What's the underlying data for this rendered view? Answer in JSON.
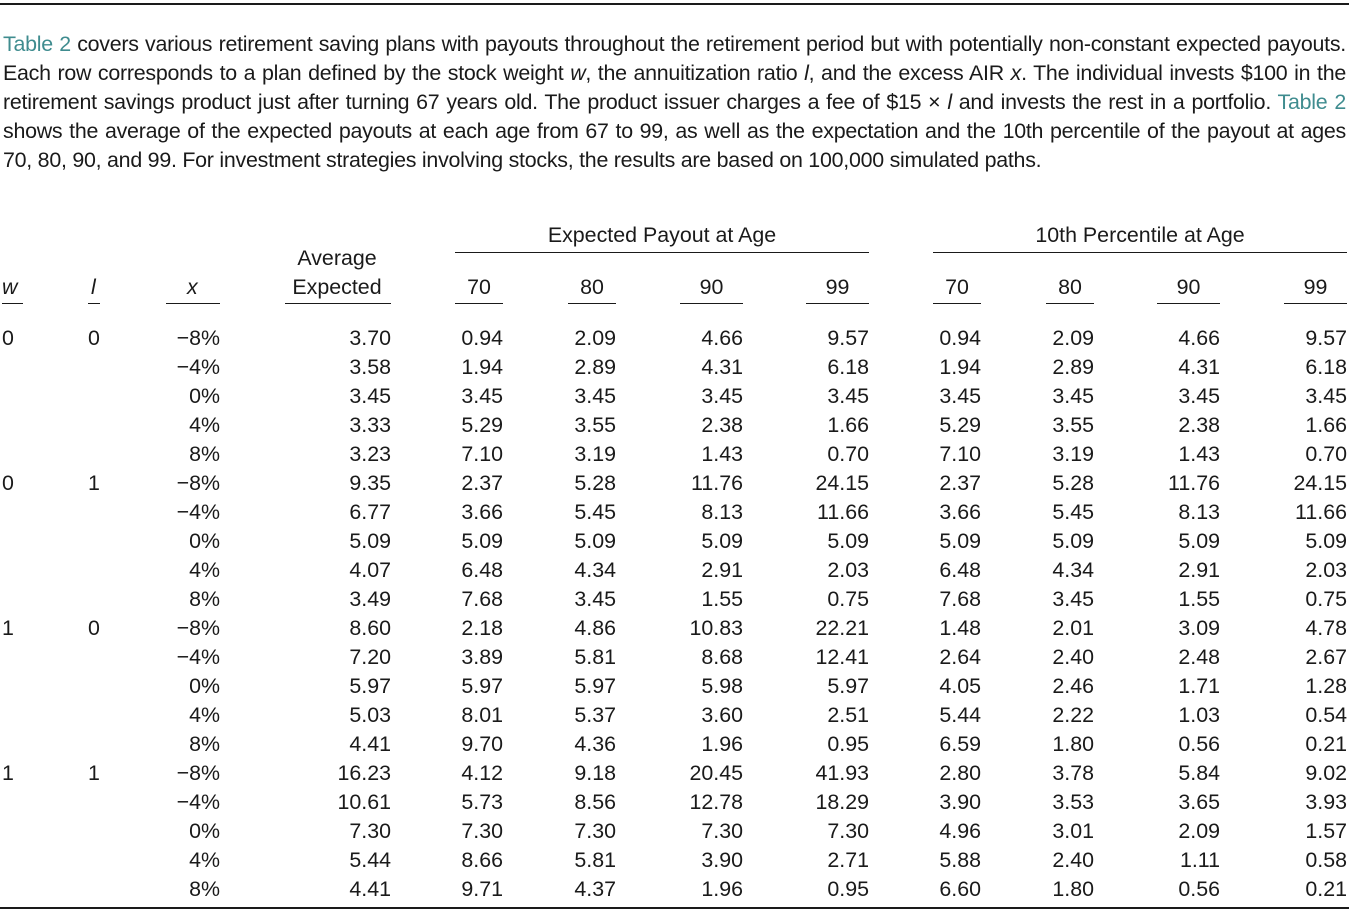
{
  "caption": {
    "ref1": "Table 2",
    "part1": " covers various retirement saving plans with payouts throughout the retirement period but with potentially non-constant expected payouts. Each row corresponds to a plan defined by the stock weight ",
    "var_w": "w",
    "part2": ", the annuitization ratio ",
    "var_l": "l",
    "part3": ", and the excess AIR ",
    "var_x": "x",
    "part4": ". The individual invests $100 in the retirement savings product just after turning 67 years old. The product issuer charges a fee of $15 × ",
    "var_l2": "l",
    "part5": " and invests the rest in a portfolio. ",
    "ref2": "Table 2",
    "part6": " shows the average of the expected payouts at each age from 67 to 99, as well as the expectation and the 10th percentile of the payout at ages 70, 80, 90, and 99. For investment strategies involving stocks, the results are based on 100,000 simulated paths."
  },
  "table": {
    "group_expected": "Expected Payout at Age",
    "group_percentile": "10th Percentile at Age",
    "col_w": "w",
    "col_l": "l",
    "col_x": "x",
    "col_avg_line1": "Average",
    "col_avg_line2": "Expected",
    "ages": [
      "70",
      "80",
      "90",
      "99"
    ],
    "rows": [
      [
        "0",
        "0",
        "−8%",
        "3.70",
        "0.94",
        "2.09",
        "4.66",
        "9.57",
        "0.94",
        "2.09",
        "4.66",
        "9.57"
      ],
      [
        "",
        "",
        "−4%",
        "3.58",
        "1.94",
        "2.89",
        "4.31",
        "6.18",
        "1.94",
        "2.89",
        "4.31",
        "6.18"
      ],
      [
        "",
        "",
        "0%",
        "3.45",
        "3.45",
        "3.45",
        "3.45",
        "3.45",
        "3.45",
        "3.45",
        "3.45",
        "3.45"
      ],
      [
        "",
        "",
        "4%",
        "3.33",
        "5.29",
        "3.55",
        "2.38",
        "1.66",
        "5.29",
        "3.55",
        "2.38",
        "1.66"
      ],
      [
        "",
        "",
        "8%",
        "3.23",
        "7.10",
        "3.19",
        "1.43",
        "0.70",
        "7.10",
        "3.19",
        "1.43",
        "0.70"
      ],
      [
        "0",
        "1",
        "−8%",
        "9.35",
        "2.37",
        "5.28",
        "11.76",
        "24.15",
        "2.37",
        "5.28",
        "11.76",
        "24.15"
      ],
      [
        "",
        "",
        "−4%",
        "6.77",
        "3.66",
        "5.45",
        "8.13",
        "11.66",
        "3.66",
        "5.45",
        "8.13",
        "11.66"
      ],
      [
        "",
        "",
        "0%",
        "5.09",
        "5.09",
        "5.09",
        "5.09",
        "5.09",
        "5.09",
        "5.09",
        "5.09",
        "5.09"
      ],
      [
        "",
        "",
        "4%",
        "4.07",
        "6.48",
        "4.34",
        "2.91",
        "2.03",
        "6.48",
        "4.34",
        "2.91",
        "2.03"
      ],
      [
        "",
        "",
        "8%",
        "3.49",
        "7.68",
        "3.45",
        "1.55",
        "0.75",
        "7.68",
        "3.45",
        "1.55",
        "0.75"
      ],
      [
        "1",
        "0",
        "−8%",
        "8.60",
        "2.18",
        "4.86",
        "10.83",
        "22.21",
        "1.48",
        "2.01",
        "3.09",
        "4.78"
      ],
      [
        "",
        "",
        "−4%",
        "7.20",
        "3.89",
        "5.81",
        "8.68",
        "12.41",
        "2.64",
        "2.40",
        "2.48",
        "2.67"
      ],
      [
        "",
        "",
        "0%",
        "5.97",
        "5.97",
        "5.97",
        "5.98",
        "5.97",
        "4.05",
        "2.46",
        "1.71",
        "1.28"
      ],
      [
        "",
        "",
        "4%",
        "5.03",
        "8.01",
        "5.37",
        "3.60",
        "2.51",
        "5.44",
        "2.22",
        "1.03",
        "0.54"
      ],
      [
        "",
        "",
        "8%",
        "4.41",
        "9.70",
        "4.36",
        "1.96",
        "0.95",
        "6.59",
        "1.80",
        "0.56",
        "0.21"
      ],
      [
        "1",
        "1",
        "−8%",
        "16.23",
        "4.12",
        "9.18",
        "20.45",
        "41.93",
        "2.80",
        "3.78",
        "5.84",
        "9.02"
      ],
      [
        "",
        "",
        "−4%",
        "10.61",
        "5.73",
        "8.56",
        "12.78",
        "18.29",
        "3.90",
        "3.53",
        "3.65",
        "3.93"
      ],
      [
        "",
        "",
        "0%",
        "7.30",
        "7.30",
        "7.30",
        "7.30",
        "7.30",
        "4.96",
        "3.01",
        "2.09",
        "1.57"
      ],
      [
        "",
        "",
        "4%",
        "5.44",
        "8.66",
        "5.81",
        "3.90",
        "2.71",
        "5.88",
        "2.40",
        "1.11",
        "0.58"
      ],
      [
        "",
        "",
        "8%",
        "4.41",
        "9.71",
        "4.37",
        "1.96",
        "0.95",
        "6.60",
        "1.80",
        "0.56",
        "0.21"
      ]
    ]
  }
}
